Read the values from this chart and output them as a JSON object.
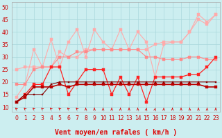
{
  "xlabel": "Vent moyen/en rafales ( km/h )",
  "xlim": [
    -0.5,
    23.5
  ],
  "ylim": [
    8,
    52
  ],
  "yticks": [
    10,
    15,
    20,
    25,
    30,
    35,
    40,
    45,
    50
  ],
  "xticks": [
    0,
    1,
    2,
    3,
    4,
    5,
    6,
    7,
    8,
    9,
    10,
    11,
    12,
    13,
    14,
    15,
    16,
    17,
    18,
    19,
    20,
    21,
    22,
    23
  ],
  "bg_color": "#cceef0",
  "grid_color": "#aad8dc",
  "x": [
    0,
    1,
    2,
    3,
    4,
    5,
    6,
    7,
    8,
    9,
    10,
    11,
    12,
    13,
    14,
    15,
    16,
    17,
    18,
    19,
    20,
    21,
    22,
    23
  ],
  "lines": [
    {
      "y": [
        14,
        19,
        33,
        26,
        37,
        26,
        36,
        41,
        30,
        41,
        36,
        33,
        41,
        33,
        40,
        36,
        22,
        35,
        36,
        36,
        40,
        47,
        44,
        47
      ],
      "color": "#ffaaaa",
      "lw": 0.8,
      "ms": 2.5
    },
    {
      "y": [
        25,
        26,
        26,
        26,
        26,
        32,
        30,
        30,
        33,
        33,
        33,
        33,
        33,
        33,
        33,
        33,
        35,
        36,
        36,
        36,
        40,
        45,
        43,
        47
      ],
      "color": "#ffaaaa",
      "lw": 0.8,
      "ms": 2.5
    },
    {
      "y": [
        19,
        19,
        25,
        26,
        26,
        30,
        30,
        32,
        32,
        33,
        33,
        33,
        33,
        33,
        33,
        30,
        30,
        29,
        29,
        29,
        30,
        30,
        29,
        29
      ],
      "color": "#ff8888",
      "lw": 0.8,
      "ms": 2.5
    },
    {
      "y": [
        12,
        15,
        19,
        19,
        26,
        26,
        15,
        20,
        25,
        25,
        25,
        15,
        22,
        15,
        22,
        12,
        22,
        22,
        22,
        22,
        23,
        23,
        26,
        30
      ],
      "color": "#ff2222",
      "lw": 0.9,
      "ms": 2.5
    },
    {
      "y": [
        12,
        14,
        18,
        18,
        18,
        19,
        18,
        19,
        19,
        19,
        19,
        19,
        19,
        19,
        19,
        19,
        19,
        19,
        19,
        19,
        19,
        19,
        18,
        18
      ],
      "color": "#bb0000",
      "lw": 1.2,
      "ms": 2.5
    },
    {
      "y": [
        12,
        15,
        15,
        15,
        19,
        20,
        20,
        20,
        20,
        20,
        20,
        20,
        20,
        20,
        20,
        20,
        20,
        20,
        20,
        20,
        20,
        20,
        20,
        20
      ],
      "color": "#880000",
      "lw": 0.8,
      "ms": 2.0
    }
  ],
  "arrow_color": "#dd0000",
  "xlabel_color": "#dd0000",
  "xlabel_fontsize": 7,
  "tick_color": "#cc0000",
  "tick_fontsize": 5.5
}
